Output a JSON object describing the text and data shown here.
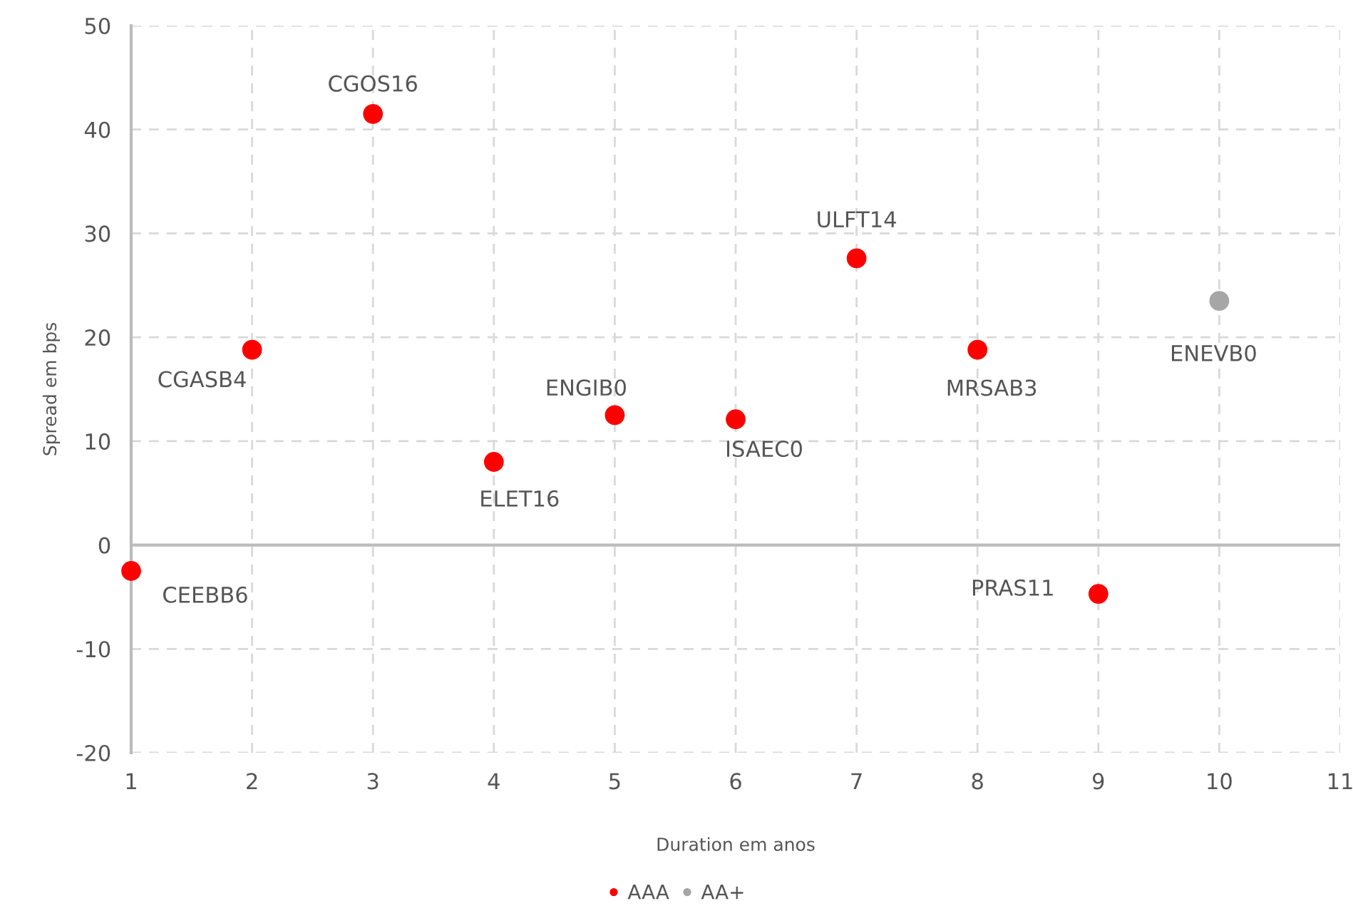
{
  "chart_data": {
    "type": "scatter",
    "xlabel": "Duration em anos",
    "ylabel": "Spread em bps",
    "xlim": [
      1,
      11
    ],
    "xticks": [
      1,
      2,
      3,
      4,
      5,
      6,
      7,
      8,
      9,
      10,
      11
    ],
    "ylim": [
      -20,
      50
    ],
    "yticks": [
      -20,
      -10,
      0,
      10,
      20,
      30,
      40,
      50
    ],
    "grid": true,
    "legend": "bottom",
    "marker": "circle",
    "series": [
      {
        "name": "AAA",
        "color": "#ff0000",
        "x": [
          1,
          2,
          3,
          4,
          5,
          6,
          7,
          8,
          9
        ],
        "values": [
          -2.5,
          18.8,
          41.5,
          8,
          12.5,
          12.1,
          27.6,
          18.8,
          -4.7
        ]
      },
      {
        "name": "AA+",
        "color": "#a6a6a6",
        "x": [
          10
        ],
        "values": [
          23.5
        ]
      }
    ],
    "annotations": [
      {
        "text": "CEEBB6",
        "x": 1,
        "y": -2.5
      },
      {
        "text": "CGASB4",
        "x": 2,
        "y": 18.8
      },
      {
        "text": "CGOS16",
        "x": 3,
        "y": 41.5
      },
      {
        "text": "ELET16",
        "x": 4,
        "y": 8
      },
      {
        "text": "ENGIB0",
        "x": 5,
        "y": 12.5
      },
      {
        "text": "ISAEC0",
        "x": 6,
        "y": 12.1
      },
      {
        "text": "ULFT14",
        "x": 7,
        "y": 27.6
      },
      {
        "text": "MRSAB3",
        "x": 8,
        "y": 18.8
      },
      {
        "text": "PRAS11",
        "x": 9,
        "y": -4.7
      },
      {
        "text": "ENEVB0",
        "x": 10,
        "y": 23.5
      }
    ]
  }
}
